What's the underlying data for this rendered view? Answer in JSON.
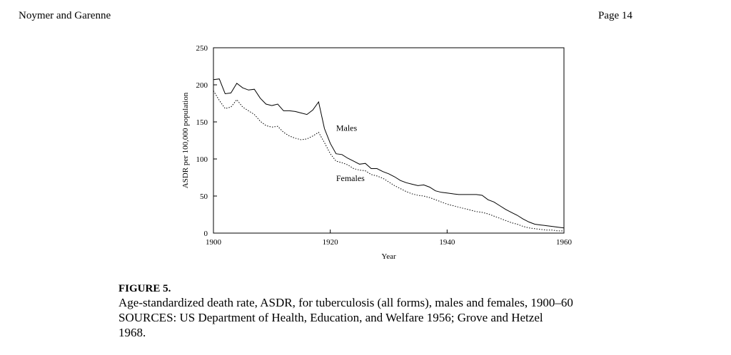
{
  "header": {
    "authors": "Noymer and Garenne",
    "page": "Page 14"
  },
  "chart_data": {
    "type": "line",
    "xlabel": "Year",
    "ylabel": "ASDR per 100,000 population",
    "xlim": [
      1900,
      1960
    ],
    "ylim": [
      0,
      250
    ],
    "xticks": [
      1900,
      1920,
      1940,
      1960
    ],
    "yticks": [
      0,
      50,
      100,
      150,
      200,
      250
    ],
    "grid": false,
    "legend": "inline labels",
    "series": [
      {
        "name": "Males",
        "style": "solid",
        "x": [
          1900,
          1901,
          1902,
          1903,
          1904,
          1905,
          1906,
          1907,
          1908,
          1909,
          1910,
          1911,
          1912,
          1913,
          1914,
          1915,
          1916,
          1917,
          1918,
          1919,
          1920,
          1921,
          1922,
          1923,
          1924,
          1925,
          1926,
          1927,
          1928,
          1929,
          1930,
          1931,
          1932,
          1933,
          1934,
          1935,
          1936,
          1937,
          1938,
          1939,
          1940,
          1941,
          1942,
          1943,
          1944,
          1945,
          1946,
          1947,
          1948,
          1949,
          1950,
          1951,
          1952,
          1953,
          1954,
          1955,
          1956,
          1957,
          1958,
          1959,
          1960
        ],
        "values": [
          207,
          208,
          188,
          189,
          202,
          196,
          193,
          194,
          182,
          174,
          172,
          174,
          165,
          165,
          164,
          162,
          160,
          166,
          177,
          141,
          121,
          107,
          106,
          101,
          97,
          93,
          94,
          87,
          87,
          83,
          80,
          76,
          71,
          68,
          66,
          64,
          65,
          62,
          57,
          55,
          54,
          53,
          52,
          52,
          52,
          52,
          51,
          45,
          42,
          37,
          32,
          28,
          24,
          19,
          15,
          12,
          11,
          10,
          9,
          8,
          7
        ]
      },
      {
        "name": "Females",
        "style": "dotted",
        "x": [
          1900,
          1901,
          1902,
          1903,
          1904,
          1905,
          1906,
          1907,
          1908,
          1909,
          1910,
          1911,
          1912,
          1913,
          1914,
          1915,
          1916,
          1917,
          1918,
          1919,
          1920,
          1921,
          1922,
          1923,
          1924,
          1925,
          1926,
          1927,
          1928,
          1929,
          1930,
          1931,
          1932,
          1933,
          1934,
          1935,
          1936,
          1937,
          1938,
          1939,
          1940,
          1941,
          1942,
          1943,
          1944,
          1945,
          1946,
          1947,
          1948,
          1949,
          1950,
          1951,
          1952,
          1953,
          1954,
          1955,
          1956,
          1957,
          1958,
          1959,
          1960
        ],
        "values": [
          192,
          179,
          168,
          170,
          180,
          170,
          165,
          160,
          151,
          145,
          143,
          144,
          136,
          131,
          128,
          126,
          127,
          131,
          136,
          122,
          107,
          97,
          95,
          92,
          87,
          85,
          84,
          79,
          77,
          74,
          69,
          64,
          60,
          56,
          53,
          51,
          50,
          48,
          45,
          42,
          39,
          37,
          35,
          33,
          31,
          29,
          28,
          26,
          23,
          20,
          17,
          14,
          12,
          9,
          7,
          6,
          5,
          4,
          4,
          3,
          3
        ]
      }
    ]
  },
  "caption": {
    "title": "FIGURE 5.",
    "lines": [
      "Age-standardized death rate, ASDR, for tuberculosis (all forms), males and females, 1900–60",
      "SOURCES: US Department of Health, Education, and Welfare 1956; Grove and Hetzel",
      "1968."
    ]
  }
}
